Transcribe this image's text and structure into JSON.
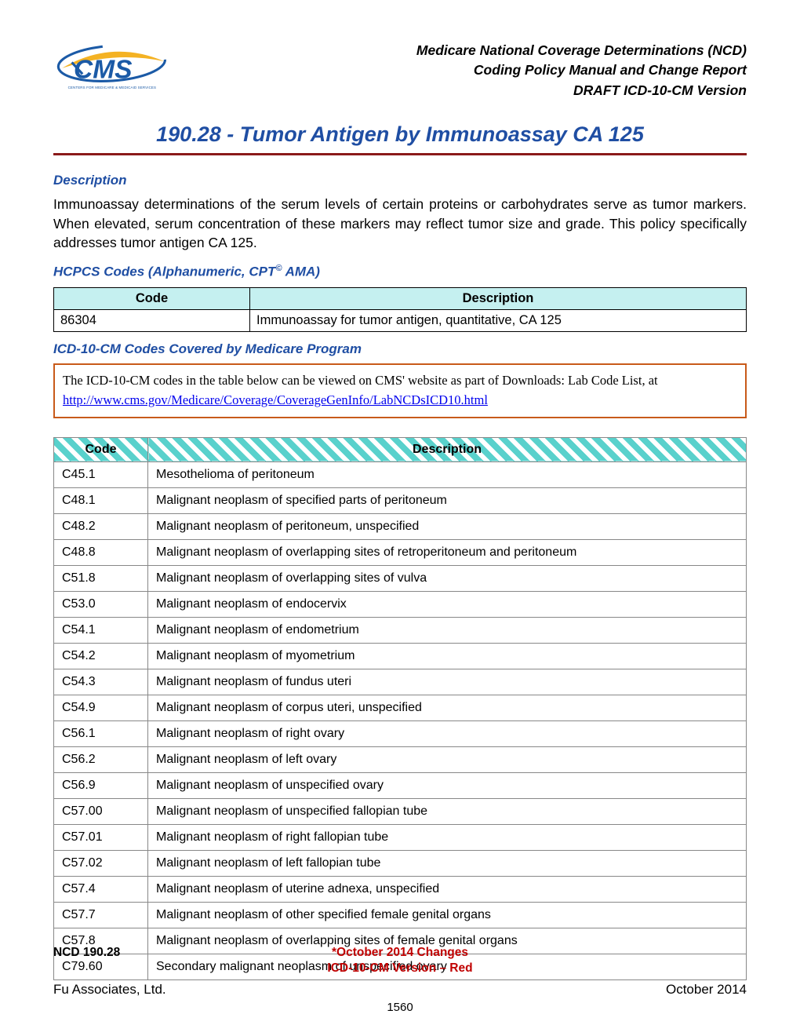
{
  "header": {
    "line1": "Medicare National Coverage Determinations (NCD)",
    "line2": "Coding Policy Manual and Change Report",
    "line3": "DRAFT ICD-10-CM Version"
  },
  "logo": {
    "text_main": "CMS",
    "text_sub": "CENTERS FOR MEDICARE & MEDICAID SERVICES",
    "swoosh_color": "#f4b223",
    "text_color": "#1b5aa6",
    "sub_color": "#1b5aa6"
  },
  "title": "190.28 - Tumor Antigen by Immunoassay CA 125",
  "title_underline_color": "#8b1a1a",
  "description_heading": "Description",
  "description_body": "Immunoassay determinations of the serum levels of certain proteins or carbohydrates serve as tumor markers. When elevated, serum concentration of these markers may reflect tumor size and grade.  This policy specifically addresses tumor antigen CA 125.",
  "hcpcs_heading": "HCPCS Codes (Alphanumeric, CPT",
  "hcpcs_heading_suffix": " AMA)",
  "hcpcs_table": {
    "header_bg": "#c5f0f0",
    "columns": [
      "Code",
      "Description"
    ],
    "rows": [
      [
        "86304",
        "Immunoassay for tumor antigen, quantitative, CA 125"
      ]
    ]
  },
  "icd_heading": "ICD-10-CM Codes Covered by Medicare Program",
  "note": {
    "text": "The ICD-10-CM codes in the table below can be viewed on CMS' website as part of Downloads:  Lab Code List, at ",
    "link": "http://www.cms.gov/Medicare/Coverage/CoverageGenInfo/LabNCDsICD10.html",
    "border_color": "#c85a1a"
  },
  "icd_table": {
    "header_pattern_color": "#59d1cc",
    "columns": [
      "Code",
      "Description"
    ],
    "rows": [
      [
        "C45.1",
        "Mesothelioma of peritoneum"
      ],
      [
        "C48.1",
        "Malignant neoplasm of specified parts of peritoneum"
      ],
      [
        "C48.2",
        "Malignant neoplasm of peritoneum, unspecified"
      ],
      [
        "C48.8",
        "Malignant neoplasm of overlapping sites of retroperitoneum and peritoneum"
      ],
      [
        "C51.8",
        "Malignant neoplasm of overlapping sites of vulva"
      ],
      [
        "C53.0",
        "Malignant neoplasm of endocervix"
      ],
      [
        "C54.1",
        "Malignant neoplasm of endometrium"
      ],
      [
        "C54.2",
        "Malignant neoplasm of myometrium"
      ],
      [
        "C54.3",
        "Malignant neoplasm of fundus uteri"
      ],
      [
        "C54.9",
        "Malignant neoplasm of corpus uteri, unspecified"
      ],
      [
        "C56.1",
        "Malignant neoplasm of right ovary"
      ],
      [
        "C56.2",
        "Malignant neoplasm of left ovary"
      ],
      [
        "C56.9",
        "Malignant neoplasm of unspecified ovary"
      ],
      [
        "C57.00",
        "Malignant neoplasm of unspecified fallopian tube"
      ],
      [
        "C57.01",
        "Malignant neoplasm of right fallopian tube"
      ],
      [
        "C57.02",
        "Malignant neoplasm of left fallopian tube"
      ],
      [
        "C57.4",
        "Malignant neoplasm of uterine adnexa, unspecified"
      ],
      [
        "C57.7",
        "Malignant neoplasm of other specified female genital organs"
      ],
      [
        "C57.8",
        "Malignant neoplasm of overlapping sites of female genital organs"
      ],
      [
        "C79.60",
        "Secondary malignant neoplasm of unspecified ovary"
      ]
    ]
  },
  "footer": {
    "ncd": "NCD 190.28",
    "changes_star": "*",
    "changes": "October 2014 Changes",
    "version": "ICD-10-CM Version – Red",
    "company": "Fu Associates, Ltd.",
    "date": "October 2014",
    "page": "1560",
    "red_color": "#c00000"
  },
  "colors": {
    "heading_blue": "#1f4ea3",
    "body_black": "#000000"
  }
}
